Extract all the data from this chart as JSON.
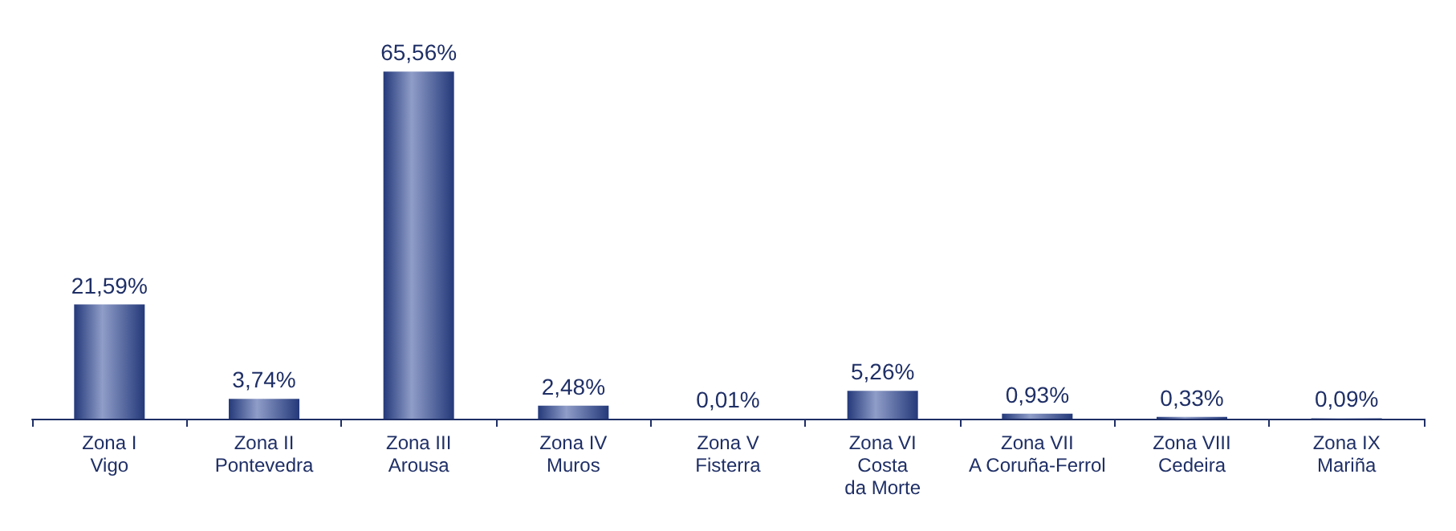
{
  "chart_data": {
    "type": "bar",
    "categories": [
      "Zona I\nVigo",
      "Zona II\nPontevedra",
      "Zona III\nArousa",
      "Zona IV\nMuros",
      "Zona V\nFisterra",
      "Zona VI\nCosta\nda Morte",
      "Zona VII\nA Coruña-Ferrol",
      "Zona VIII\nCedeira",
      "Zona IX\nMariña"
    ],
    "values": [
      21.59,
      3.74,
      65.56,
      2.48,
      0.01,
      5.26,
      0.93,
      0.33,
      0.09
    ],
    "value_labels": [
      "21,59%",
      "3,74%",
      "65,56%",
      "2,48%",
      "0,01%",
      "5,26%",
      "0,93%",
      "0,33%",
      "0,09%"
    ],
    "color": "#24397a"
  }
}
